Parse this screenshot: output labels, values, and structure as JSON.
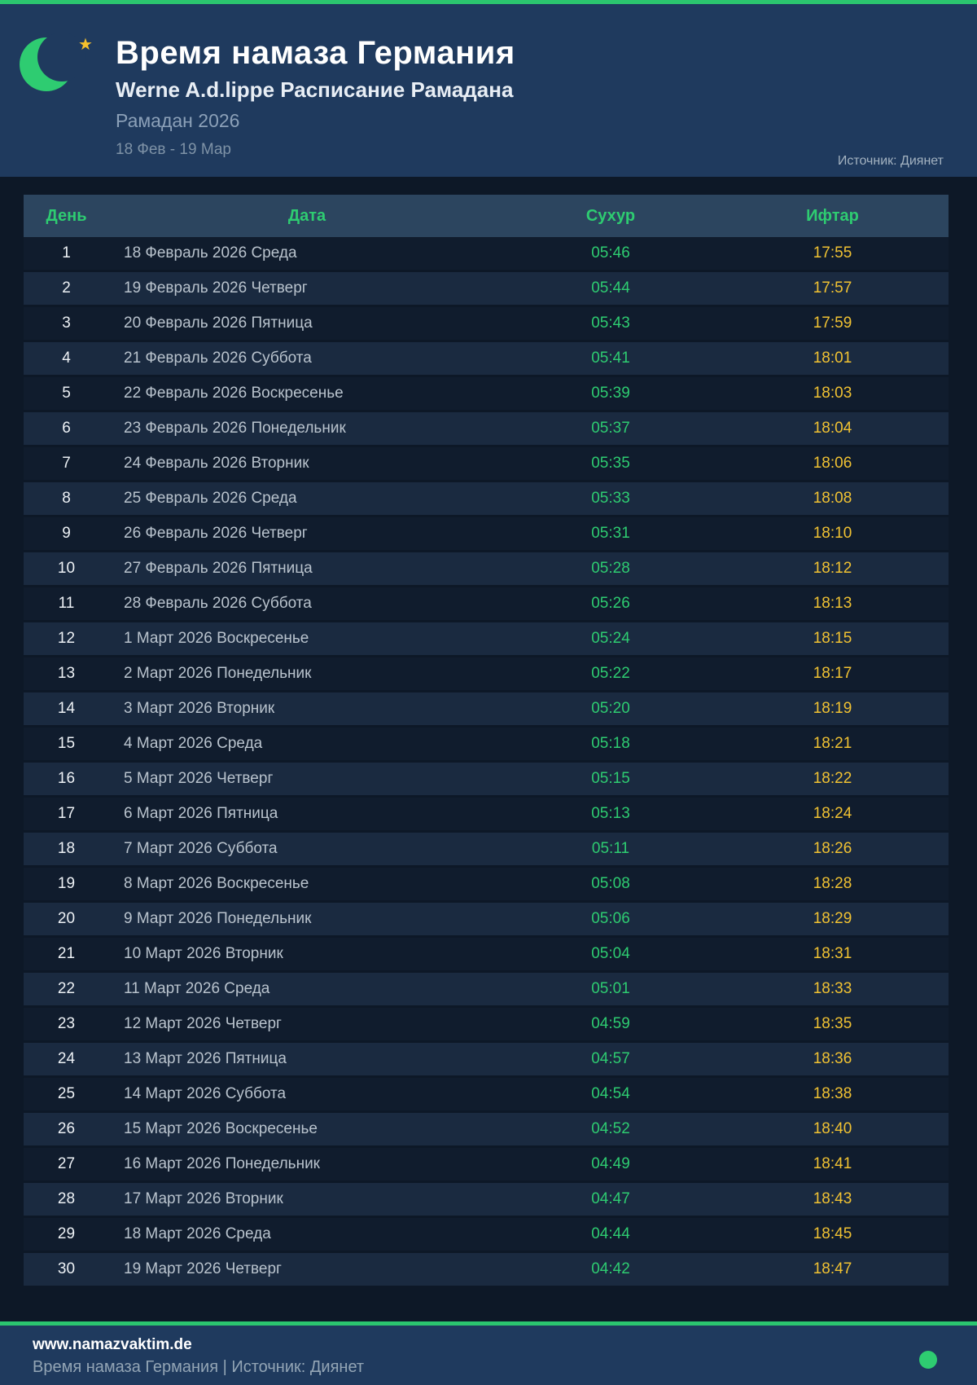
{
  "header": {
    "title": "Время намаза Германия",
    "subtitle": "Werne A.d.lippe Расписание Рамадана",
    "period_label": "Рамадан 2026",
    "date_range": "18 Фев - 19 Мар",
    "source": "Источник: Диянет",
    "moon_icon": "crescent-moon-icon",
    "star_icon": "star-icon"
  },
  "colors": {
    "accent_green": "#2ecc71",
    "topbar_green": "#2bc56f",
    "iftar_yellow": "#f1c232",
    "header_navy": "#1f3a5e",
    "page_bg": "#0d1827",
    "table_head_bg": "#2c455f",
    "row_alt_bg": "#1a2a40"
  },
  "table": {
    "columns": {
      "day": "День",
      "date": "Дата",
      "suhur": "Сухур",
      "iftar": "Ифтар"
    },
    "rows": [
      {
        "day": "1",
        "date": "18 Февраль 2026 Среда",
        "suhur": "05:46",
        "iftar": "17:55"
      },
      {
        "day": "2",
        "date": "19 Февраль 2026 Четверг",
        "suhur": "05:44",
        "iftar": "17:57"
      },
      {
        "day": "3",
        "date": "20 Февраль 2026 Пятница",
        "suhur": "05:43",
        "iftar": "17:59"
      },
      {
        "day": "4",
        "date": "21 Февраль 2026 Суббота",
        "suhur": "05:41",
        "iftar": "18:01"
      },
      {
        "day": "5",
        "date": "22 Февраль 2026 Воскресенье",
        "suhur": "05:39",
        "iftar": "18:03"
      },
      {
        "day": "6",
        "date": "23 Февраль 2026 Понедельник",
        "suhur": "05:37",
        "iftar": "18:04"
      },
      {
        "day": "7",
        "date": "24 Февраль 2026 Вторник",
        "suhur": "05:35",
        "iftar": "18:06"
      },
      {
        "day": "8",
        "date": "25 Февраль 2026 Среда",
        "suhur": "05:33",
        "iftar": "18:08"
      },
      {
        "day": "9",
        "date": "26 Февраль 2026 Четверг",
        "suhur": "05:31",
        "iftar": "18:10"
      },
      {
        "day": "10",
        "date": "27 Февраль 2026 Пятница",
        "suhur": "05:28",
        "iftar": "18:12"
      },
      {
        "day": "11",
        "date": "28 Февраль 2026 Суббота",
        "suhur": "05:26",
        "iftar": "18:13"
      },
      {
        "day": "12",
        "date": "1 Март 2026 Воскресенье",
        "suhur": "05:24",
        "iftar": "18:15"
      },
      {
        "day": "13",
        "date": "2 Март 2026 Понедельник",
        "suhur": "05:22",
        "iftar": "18:17"
      },
      {
        "day": "14",
        "date": "3 Март 2026 Вторник",
        "suhur": "05:20",
        "iftar": "18:19"
      },
      {
        "day": "15",
        "date": "4 Март 2026 Среда",
        "suhur": "05:18",
        "iftar": "18:21"
      },
      {
        "day": "16",
        "date": "5 Март 2026 Четверг",
        "suhur": "05:15",
        "iftar": "18:22"
      },
      {
        "day": "17",
        "date": "6 Март 2026 Пятница",
        "suhur": "05:13",
        "iftar": "18:24"
      },
      {
        "day": "18",
        "date": "7 Март 2026 Суббота",
        "suhur": "05:11",
        "iftar": "18:26"
      },
      {
        "day": "19",
        "date": "8 Март 2026 Воскресенье",
        "suhur": "05:08",
        "iftar": "18:28"
      },
      {
        "day": "20",
        "date": "9 Март 2026 Понедельник",
        "suhur": "05:06",
        "iftar": "18:29"
      },
      {
        "day": "21",
        "date": "10 Март 2026 Вторник",
        "suhur": "05:04",
        "iftar": "18:31"
      },
      {
        "day": "22",
        "date": "11 Март 2026 Среда",
        "suhur": "05:01",
        "iftar": "18:33"
      },
      {
        "day": "23",
        "date": "12 Март 2026 Четверг",
        "suhur": "04:59",
        "iftar": "18:35"
      },
      {
        "day": "24",
        "date": "13 Март 2026 Пятница",
        "suhur": "04:57",
        "iftar": "18:36"
      },
      {
        "day": "25",
        "date": "14 Март 2026 Суббота",
        "suhur": "04:54",
        "iftar": "18:38"
      },
      {
        "day": "26",
        "date": "15 Март 2026 Воскресенье",
        "suhur": "04:52",
        "iftar": "18:40"
      },
      {
        "day": "27",
        "date": "16 Март 2026 Понедельник",
        "suhur": "04:49",
        "iftar": "18:41"
      },
      {
        "day": "28",
        "date": "17 Март 2026 Вторник",
        "suhur": "04:47",
        "iftar": "18:43"
      },
      {
        "day": "29",
        "date": "18 Март 2026 Среда",
        "suhur": "04:44",
        "iftar": "18:45"
      },
      {
        "day": "30",
        "date": "19 Март 2026 Четверг",
        "suhur": "04:42",
        "iftar": "18:47"
      }
    ]
  },
  "footer": {
    "website": "www.namazvaktim.de",
    "tagline": "Время намаза Германия | Источник: Диянет",
    "status_icon": "green-dot-icon"
  }
}
